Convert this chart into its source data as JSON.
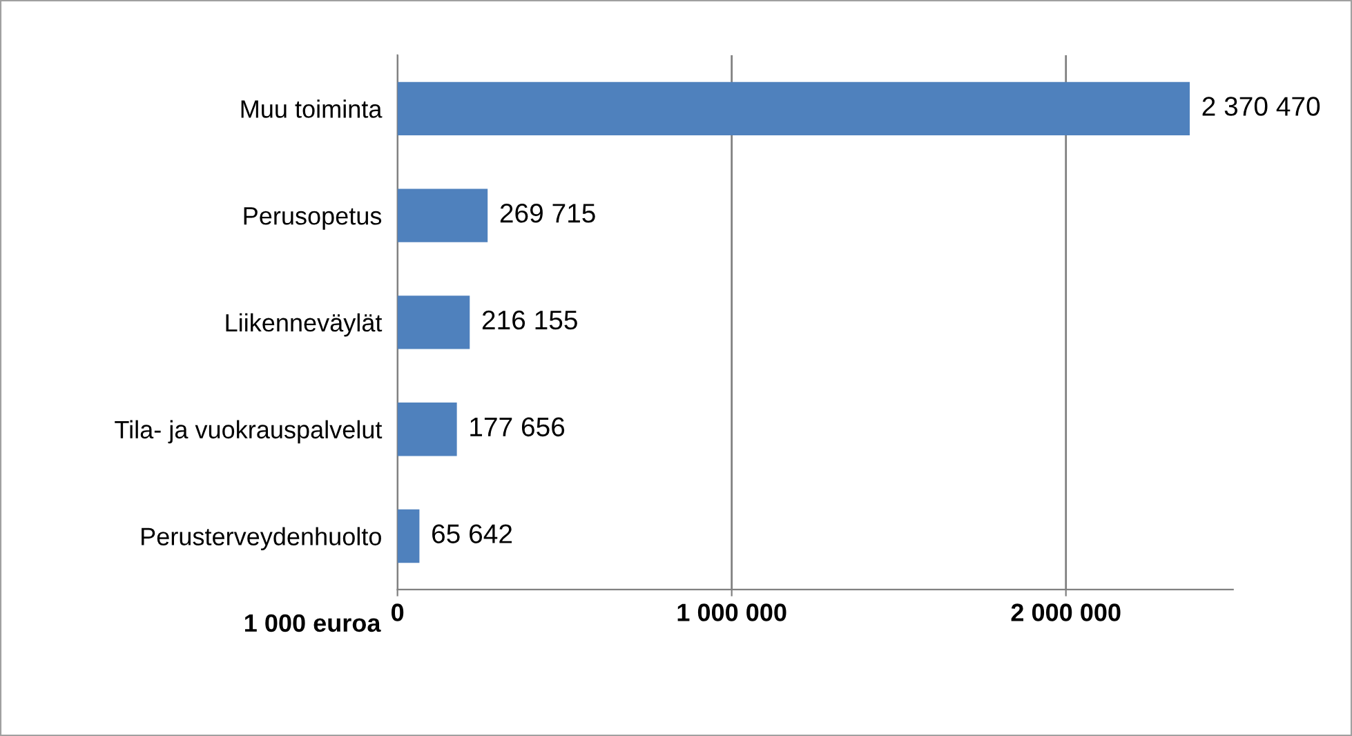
{
  "chart_data": {
    "type": "bar",
    "orientation": "horizontal",
    "categories": [
      "Muu toiminta",
      "Perusopetus",
      "Liikenneväylät",
      "Tila- ja vuokrauspalvelut",
      "Perusterveydenhuolto"
    ],
    "values": [
      2370470,
      269715,
      216155,
      177656,
      65642
    ],
    "value_labels": [
      "2 370 470",
      "269 715",
      "216 155",
      "177 656",
      "65 642"
    ],
    "color": "#4f81bd",
    "xlabel": "1 000 euroa",
    "xlim": [
      0,
      2500000
    ],
    "xticks": [
      0,
      {
        "value": 1000000,
        "label": "1 000 000"
      },
      {
        "value": 2000000,
        "label": "2 000 000"
      }
    ],
    "grid": "x",
    "legend": false
  }
}
